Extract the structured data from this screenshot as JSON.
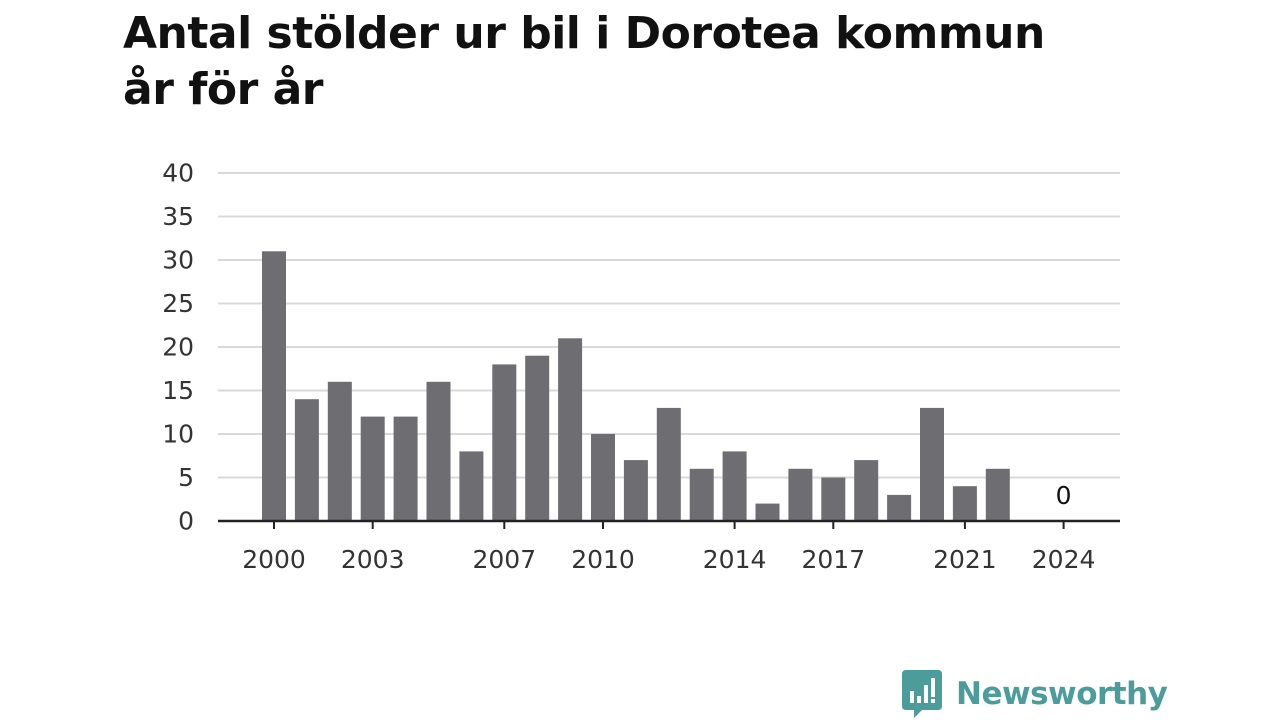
{
  "title_line1": "Antal stölder ur bil i Dorotea kommun",
  "title_line2": "år för år",
  "brand": {
    "name": "Newsworthy",
    "color": "#4c9c9b"
  },
  "colors": {
    "bar": "#6e6d72",
    "grid": "#d9d9d9",
    "axis": "#222222"
  },
  "chart_data": {
    "type": "bar",
    "categories": [
      "2000",
      "2001",
      "2002",
      "2003",
      "2004",
      "2005",
      "2006",
      "2007",
      "2008",
      "2009",
      "2010",
      "2011",
      "2012",
      "2013",
      "2014",
      "2015",
      "2016",
      "2017",
      "2018",
      "2019",
      "2020",
      "2021",
      "2022",
      "2023",
      "2024"
    ],
    "values": [
      31,
      14,
      16,
      12,
      12,
      16,
      8,
      18,
      19,
      21,
      10,
      7,
      13,
      6,
      8,
      2,
      6,
      5,
      7,
      3,
      13,
      4,
      6,
      null,
      0
    ],
    "value_labels": [
      {
        "category": "2024",
        "text": "0"
      }
    ],
    "x_tick_labels": [
      "2000",
      "2003",
      "2007",
      "2010",
      "2014",
      "2017",
      "2021",
      "2024"
    ],
    "y_ticks": [
      0,
      5,
      10,
      15,
      20,
      25,
      30,
      35,
      40
    ],
    "ylim": [
      0,
      40
    ],
    "grid": true,
    "legend": "none"
  }
}
